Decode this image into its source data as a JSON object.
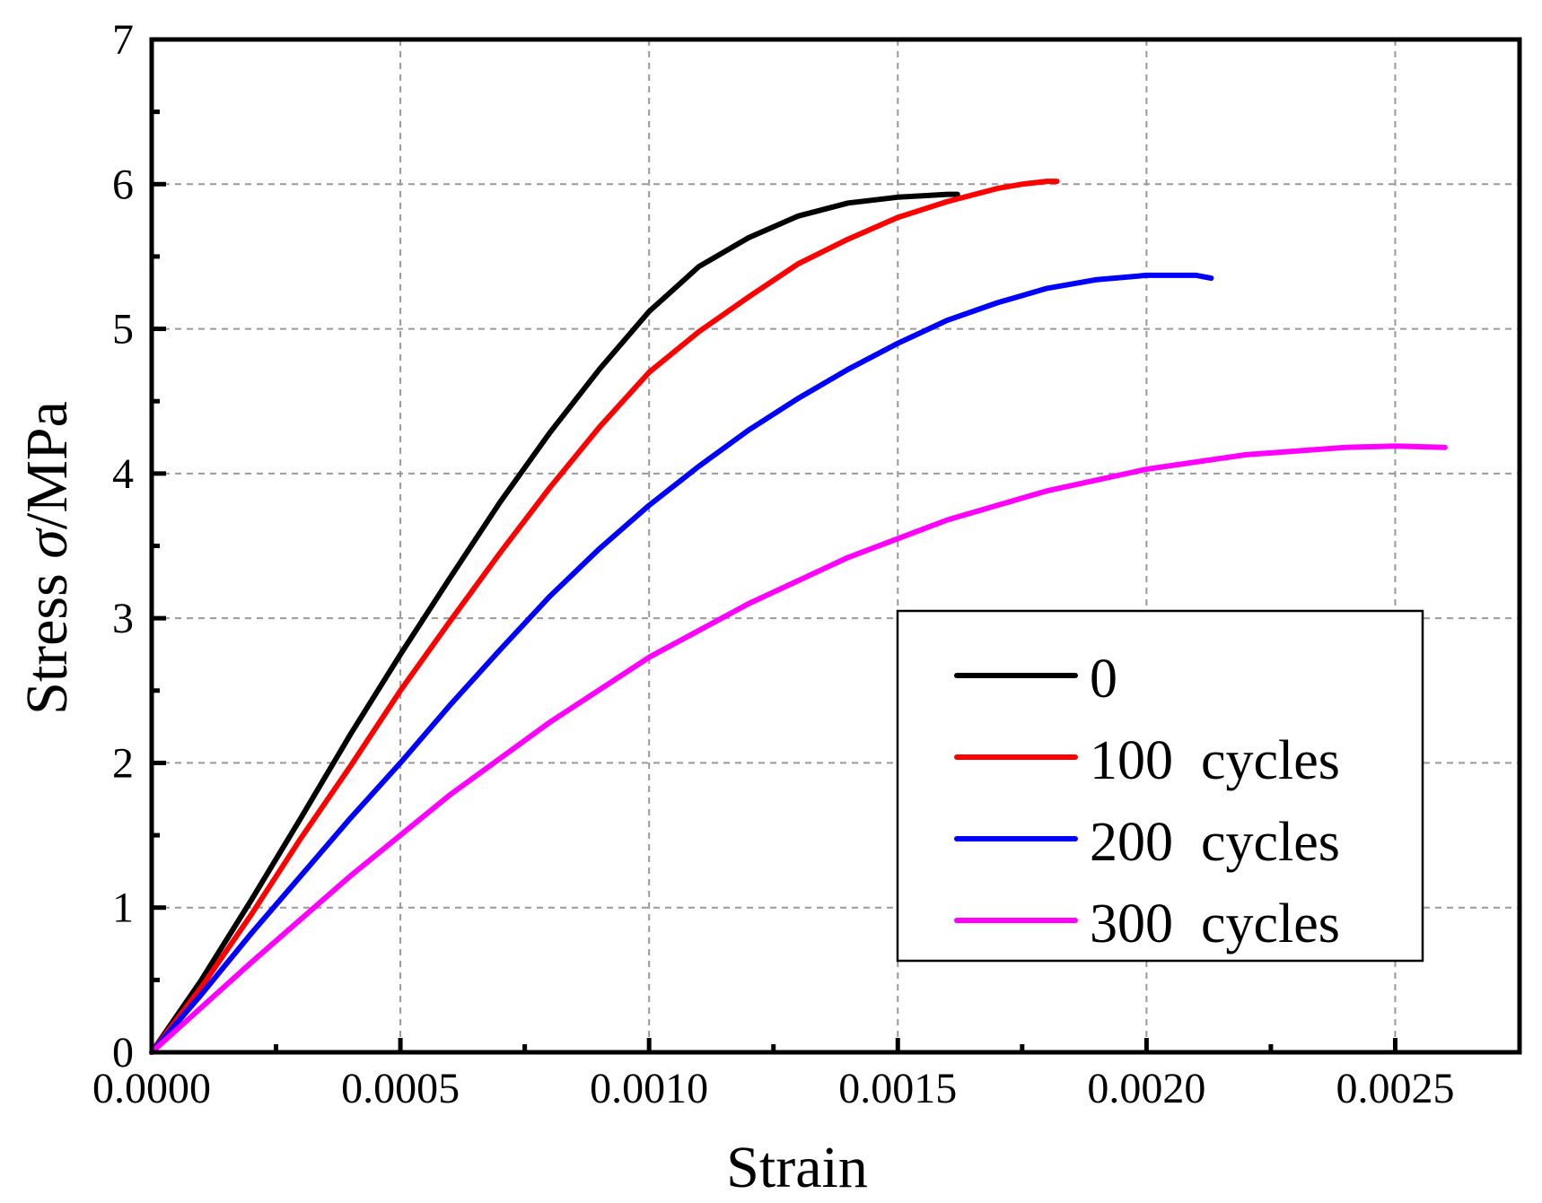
{
  "chart_data": {
    "type": "line",
    "title": "",
    "xlabel": "Strain",
    "ylabel_prefix": "Stress ",
    "ylabel_symbol": "σ",
    "ylabel_suffix": "/MPa",
    "xlim": [
      0,
      0.00275
    ],
    "ylim": [
      0,
      7
    ],
    "grid": true,
    "legend_position": "bottom-right",
    "x_ticks": [
      {
        "value": 0,
        "label": "0.0000"
      },
      {
        "value": 0.0005,
        "label": "0.0005"
      },
      {
        "value": 0.001,
        "label": "0.0010"
      },
      {
        "value": 0.0015,
        "label": "0.0015"
      },
      {
        "value": 0.002,
        "label": "0.0020"
      },
      {
        "value": 0.0025,
        "label": "0.0025"
      }
    ],
    "y_ticks": [
      {
        "value": 0,
        "label": "0"
      },
      {
        "value": 1,
        "label": "1"
      },
      {
        "value": 2,
        "label": "2"
      },
      {
        "value": 3,
        "label": "3"
      },
      {
        "value": 4,
        "label": "4"
      },
      {
        "value": 5,
        "label": "5"
      },
      {
        "value": 6,
        "label": "6"
      },
      {
        "value": 7,
        "label": "7"
      }
    ],
    "series": [
      {
        "name": "0",
        "color": "#000000",
        "x": [
          0,
          0.0001,
          0.0002,
          0.0003,
          0.0004,
          0.0005,
          0.0006,
          0.0007,
          0.0008,
          0.0009,
          0.001,
          0.0011,
          0.0012,
          0.0013,
          0.0014,
          0.0015,
          0.00155,
          0.0016,
          0.00162
        ],
        "y": [
          0,
          0.5,
          1.05,
          1.62,
          2.2,
          2.75,
          3.28,
          3.8,
          4.28,
          4.72,
          5.12,
          5.43,
          5.63,
          5.78,
          5.87,
          5.91,
          5.92,
          5.93,
          5.93
        ]
      },
      {
        "name": "100  cycles",
        "color": "#ff0000",
        "x": [
          0,
          0.0001,
          0.0002,
          0.0003,
          0.0004,
          0.0005,
          0.0006,
          0.0007,
          0.0008,
          0.0009,
          0.001,
          0.0011,
          0.0012,
          0.0013,
          0.0014,
          0.0015,
          0.0016,
          0.0017,
          0.00175,
          0.0018,
          0.00182
        ],
        "y": [
          0,
          0.45,
          0.95,
          1.48,
          1.98,
          2.5,
          2.98,
          3.45,
          3.9,
          4.32,
          4.7,
          4.98,
          5.22,
          5.45,
          5.62,
          5.77,
          5.88,
          5.97,
          6.0,
          6.02,
          6.02
        ]
      },
      {
        "name": "200  cycles",
        "color": "#0000ff",
        "x": [
          0,
          0.0001,
          0.0002,
          0.0003,
          0.0004,
          0.0005,
          0.0006,
          0.0007,
          0.0008,
          0.0009,
          0.001,
          0.0011,
          0.0012,
          0.0013,
          0.0014,
          0.0015,
          0.0016,
          0.0017,
          0.0018,
          0.0019,
          0.002,
          0.0021,
          0.00213
        ],
        "y": [
          0,
          0.4,
          0.82,
          1.22,
          1.62,
          2.0,
          2.4,
          2.78,
          3.15,
          3.48,
          3.78,
          4.05,
          4.3,
          4.52,
          4.72,
          4.9,
          5.06,
          5.18,
          5.28,
          5.34,
          5.37,
          5.37,
          5.35
        ]
      },
      {
        "name": "300  cycles",
        "color": "#ff00ff",
        "x": [
          0,
          0.0002,
          0.0004,
          0.0006,
          0.0008,
          0.001,
          0.0012,
          0.0014,
          0.0016,
          0.0018,
          0.002,
          0.0022,
          0.0024,
          0.0025,
          0.0026
        ],
        "y": [
          0,
          0.62,
          1.22,
          1.78,
          2.28,
          2.73,
          3.1,
          3.42,
          3.68,
          3.88,
          4.03,
          4.13,
          4.18,
          4.19,
          4.18
        ]
      }
    ]
  }
}
